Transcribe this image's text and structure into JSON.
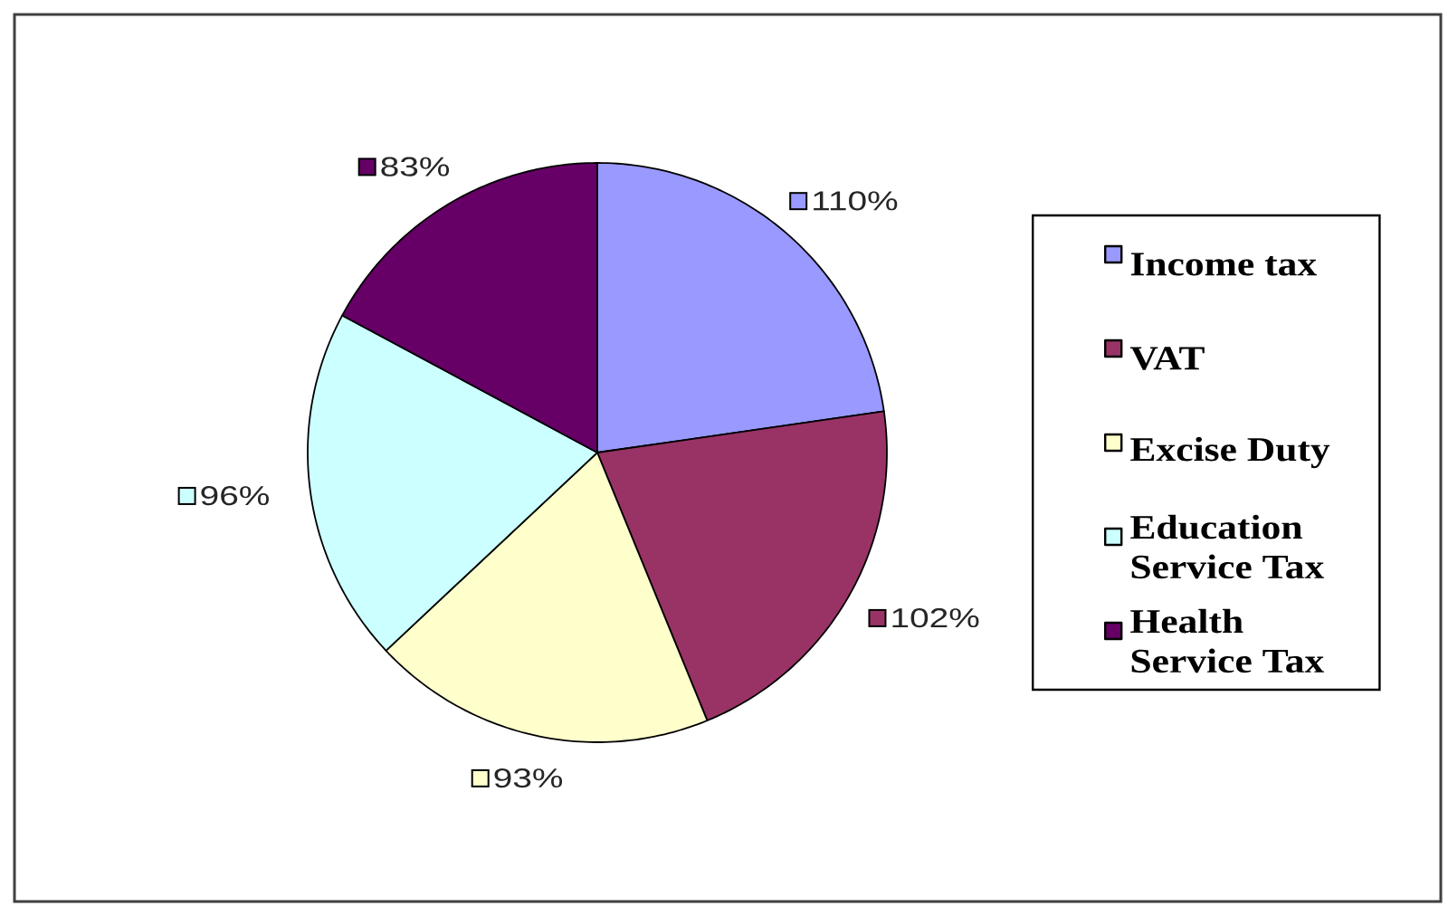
{
  "chart_data": {
    "type": "pie",
    "categories": [
      "Income tax",
      "VAT",
      "Excise Duty",
      "Education Service Tax",
      "Health Service Tax"
    ],
    "values": [
      110,
      102,
      93,
      96,
      83
    ],
    "colors": [
      "#9999ff",
      "#993366",
      "#ffffcc",
      "#ccffff",
      "#660066"
    ],
    "value_labels": [
      "110%",
      "102%",
      "93%",
      "96%",
      "83%"
    ],
    "legend": "right"
  }
}
